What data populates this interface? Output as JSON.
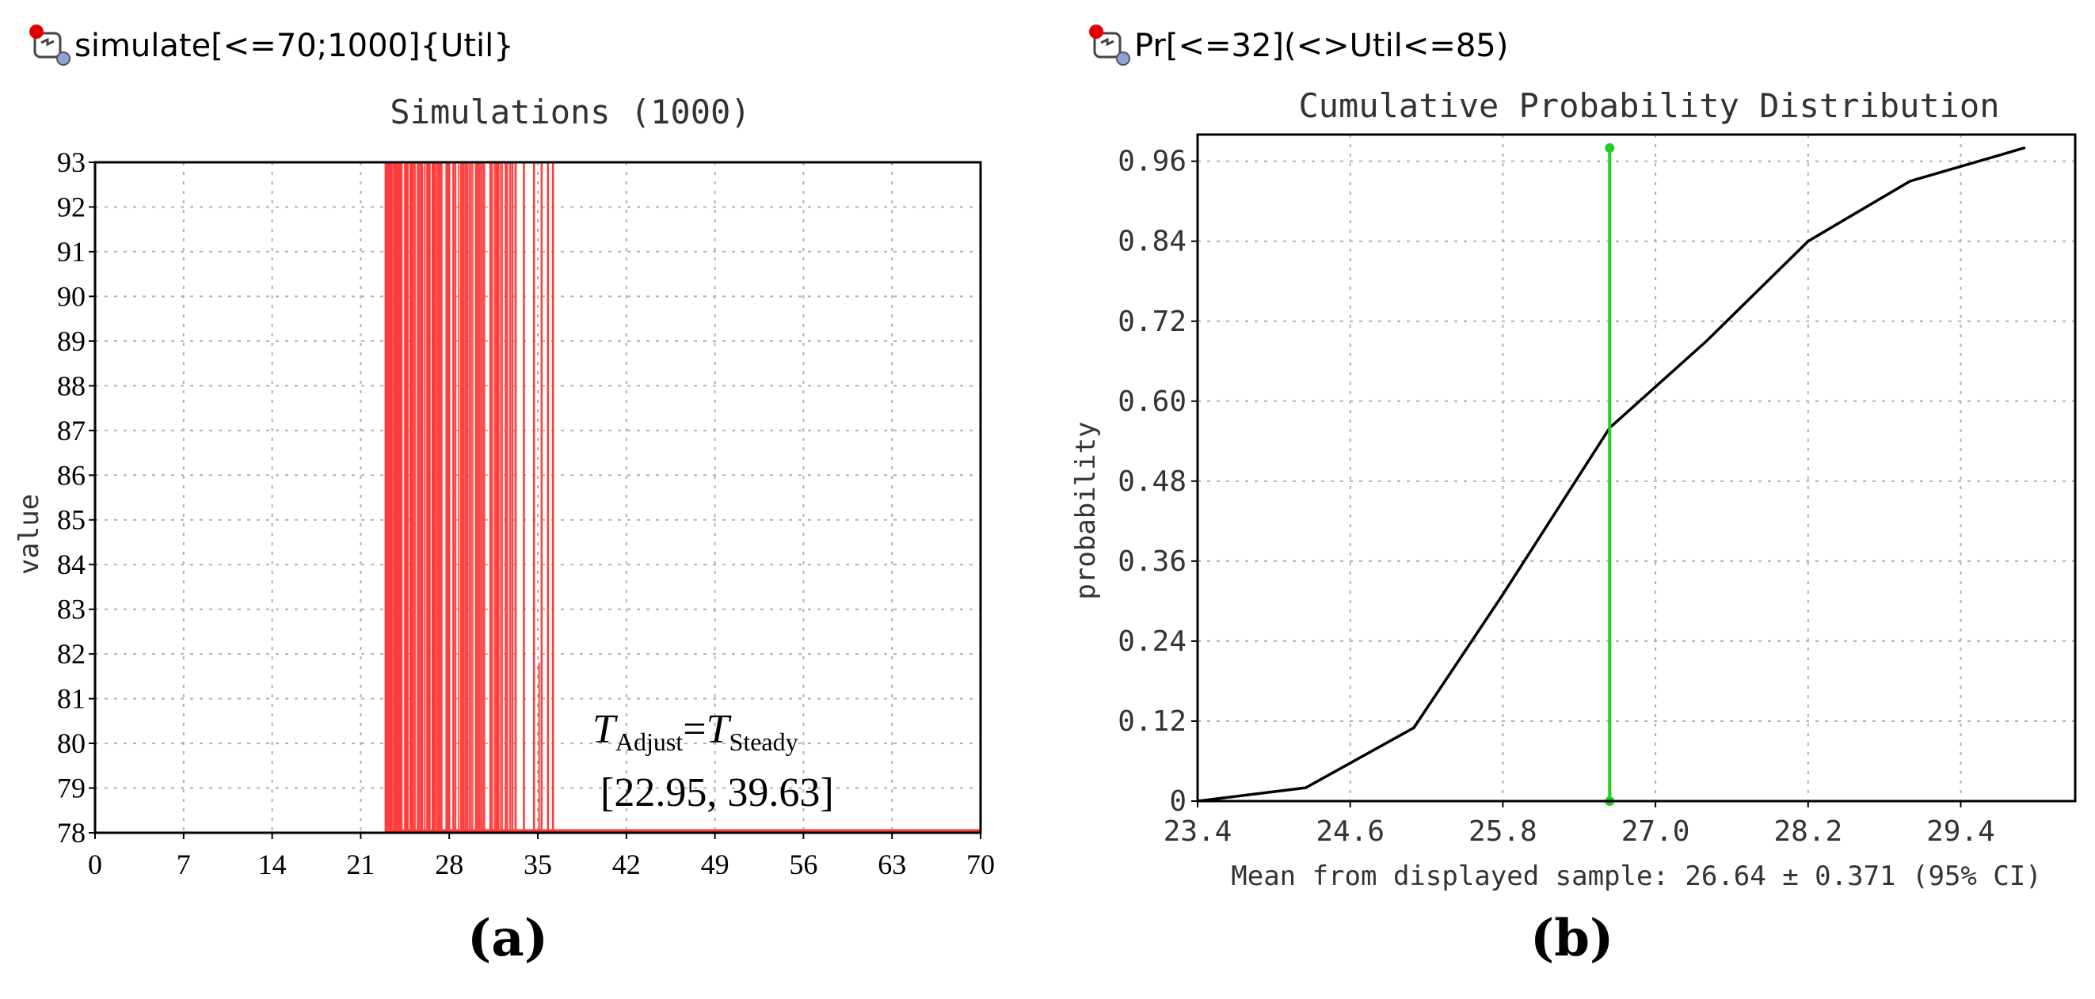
{
  "panels": [
    {
      "query": "simulate[<=70;1000]{Util}",
      "label_text": "a"
    },
    {
      "query": "Pr[<=32](<>Util<=85)",
      "label_text": "b"
    }
  ],
  "colors": {
    "sim_red": "#ff3b3b",
    "cdf_line": "#000000",
    "mean_marker": "#22cc22",
    "grid": "#b0b0b0",
    "status_red": "#e00000",
    "status_blue": "#8fa2d4"
  },
  "icons": [
    "query-status-icon"
  ],
  "chart_data": [
    {
      "type": "line",
      "title": "Simulations (1000)",
      "xlabel": "",
      "ylabel": "value",
      "xlim": [
        0,
        70
      ],
      "ylim": [
        78,
        93
      ],
      "xticks": [
        "0",
        "7",
        "14",
        "21",
        "28",
        "35",
        "42",
        "49",
        "56",
        "63",
        "70"
      ],
      "yticks": [
        "78",
        "79",
        "80",
        "81",
        "82",
        "83",
        "84",
        "85",
        "86",
        "87",
        "88",
        "89",
        "90",
        "91",
        "92",
        "93"
      ],
      "grid": true,
      "series": [
        {
          "high_value": 93,
          "low_value": 78,
          "drop_time_range": [
            22.95,
            39.63
          ],
          "sim_end_time": 70
        }
      ],
      "annotation": {
        "T1": "T",
        "sub1": "Adjust",
        "eq": "=",
        "T2": "T",
        "sub2": "Steady",
        "range": "[22.95, 39.63]"
      }
    },
    {
      "type": "line",
      "title": "Cumulative Probability Distribution",
      "xlabel": "Mean from displayed sample: 26.64 ± 0.371 (95% CI)",
      "ylabel": "probability",
      "xlim": [
        23.4,
        30.3
      ],
      "ylim": [
        0,
        1.0
      ],
      "xticks": [
        "23.4",
        "24.6",
        "25.8",
        "27.0",
        "28.2",
        "29.4"
      ],
      "yticks": [
        "0",
        "0.12",
        "0.24",
        "0.36",
        "0.48",
        "0.60",
        "0.72",
        "0.84",
        "0.96"
      ],
      "grid": true,
      "x": [
        23.4,
        24.25,
        25.1,
        25.8,
        26.64,
        27.4,
        28.2,
        29.0,
        29.9
      ],
      "y": [
        0.0,
        0.02,
        0.11,
        0.31,
        0.56,
        0.69,
        0.84,
        0.93,
        0.98
      ],
      "mean_marker": {
        "x": 26.64,
        "y_top": 0.98
      }
    }
  ]
}
